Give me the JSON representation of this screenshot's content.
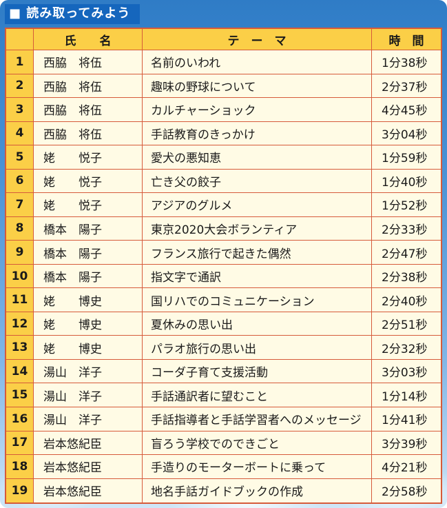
{
  "title": "■ 読み取ってみよう",
  "table": {
    "headers": {
      "no": "",
      "name": "氏　　名",
      "theme": "テ　ー　マ",
      "time": "時　間"
    },
    "rows": [
      {
        "no": "1",
        "name": "西脇　将伍",
        "theme": "名前のいわれ",
        "time": "1分38秒"
      },
      {
        "no": "2",
        "name": "西脇　将伍",
        "theme": "趣味の野球について",
        "time": "2分37秒"
      },
      {
        "no": "3",
        "name": "西脇　将伍",
        "theme": "カルチャーショック",
        "time": "4分45秒"
      },
      {
        "no": "4",
        "name": "西脇　将伍",
        "theme": "手話教育のきっかけ",
        "time": "3分04秒"
      },
      {
        "no": "5",
        "name": "姥　　悦子",
        "theme": "愛犬の悪知恵",
        "time": "1分59秒"
      },
      {
        "no": "6",
        "name": "姥　　悦子",
        "theme": "亡き父の餃子",
        "time": "1分40秒"
      },
      {
        "no": "7",
        "name": "姥　　悦子",
        "theme": "アジアのグルメ",
        "time": "1分52秒"
      },
      {
        "no": "8",
        "name": "橋本　陽子",
        "theme": "東京2020大会ボランティア",
        "time": "2分33秒"
      },
      {
        "no": "9",
        "name": "橋本　陽子",
        "theme": "フランス旅行で起きた偶然",
        "time": "2分47秒"
      },
      {
        "no": "10",
        "name": "橋本　陽子",
        "theme": "指文字で通訳",
        "time": "2分38秒"
      },
      {
        "no": "11",
        "name": "姥　　博史",
        "theme": "国リハでのコミュニケーション",
        "time": "2分40秒"
      },
      {
        "no": "12",
        "name": "姥　　博史",
        "theme": "夏休みの思い出",
        "time": "2分51秒"
      },
      {
        "no": "13",
        "name": "姥　　博史",
        "theme": "パラオ旅行の思い出",
        "time": "2分32秒"
      },
      {
        "no": "14",
        "name": "湯山　洋子",
        "theme": "コーダ子育て支援活動",
        "time": "3分03秒"
      },
      {
        "no": "15",
        "name": "湯山　洋子",
        "theme": "手話通訳者に望むこと",
        "time": "1分14秒"
      },
      {
        "no": "16",
        "name": "湯山　洋子",
        "theme": "手話指導者と手話学習者へのメッセージ",
        "time": "1分41秒"
      },
      {
        "no": "17",
        "name": "岩本悠紀臣",
        "theme": "盲ろう学校でのできごと",
        "time": "3分39秒"
      },
      {
        "no": "18",
        "name": "岩本悠紀臣",
        "theme": "手造りのモーターボートに乗って",
        "time": "4分21秒"
      },
      {
        "no": "19",
        "name": "岩本悠紀臣",
        "theme": "地名手話ガイドブックの作成",
        "time": "2分58秒"
      }
    ]
  },
  "colors": {
    "frame_blue": "#2f7cc6",
    "title_blue": "#1566bd",
    "header_gold": "#fbcf47",
    "cell_cream": "#fffbe5",
    "grid_red": "#d65a3a"
  }
}
